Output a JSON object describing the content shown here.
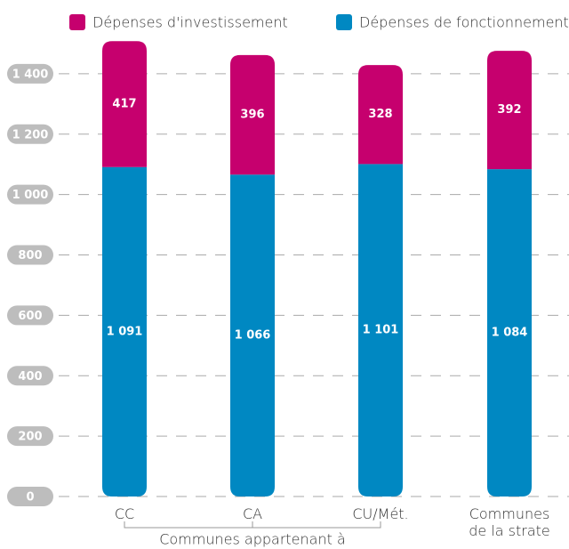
{
  "chart_data": {
    "type": "stacked_bar",
    "categories": [
      "CC",
      "CA",
      "CU/Mét.",
      "Communes de la strate"
    ],
    "series": [
      {
        "name": "Dépenses de fonctionnement",
        "color": "#0088c2",
        "values": [
          1091,
          1066,
          1101,
          1084
        ],
        "value_labels": [
          "1 091",
          "1 066",
          "1 101",
          "1 084"
        ]
      },
      {
        "name": "Dépenses d'investissement",
        "color": "#c6006e",
        "values": [
          417,
          396,
          328,
          392
        ]
      }
    ],
    "annotation": "Communes appartenant à",
    "ylim": [
      0,
      1500
    ],
    "yticks": [
      0,
      200,
      400,
      600,
      800,
      {
        "value": 1000,
        "label": "1 000"
      },
      {
        "value": 1200,
        "label": "1 200"
      },
      {
        "value": 1400,
        "label": "1 400"
      }
    ],
    "grid": true
  }
}
